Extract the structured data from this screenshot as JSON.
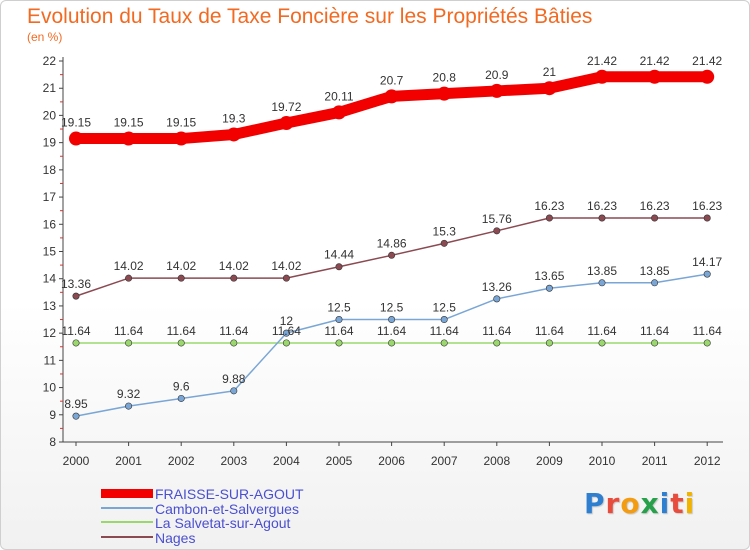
{
  "chart_data": {
    "type": "line",
    "title": "Evolution du Taux de Taxe Foncière sur les Propriétés Bâties",
    "subtitle": "(en %)",
    "xlabel": "",
    "ylabel": "",
    "categories": [
      "2000",
      "2001",
      "2002",
      "2003",
      "2004",
      "2005",
      "2006",
      "2007",
      "2008",
      "2009",
      "2010",
      "2011",
      "2012"
    ],
    "ylim": [
      8,
      22
    ],
    "yticks": [
      8,
      9,
      10,
      11,
      12,
      13,
      14,
      15,
      16,
      17,
      18,
      19,
      20,
      21,
      22
    ],
    "grid": false,
    "legend_position": "bottom-left",
    "series": [
      {
        "name": "FRAISSE-SUR-AGOUT",
        "color": "#f20000",
        "values": [
          19.15,
          19.15,
          19.15,
          19.3,
          19.72,
          20.11,
          20.7,
          20.8,
          20.9,
          21,
          21.42,
          21.42,
          21.42
        ],
        "labels": [
          "19.15",
          "19.15",
          "19.15",
          "19.3",
          "19.72",
          "20.11",
          "20.7",
          "20.8",
          "20.9",
          "21",
          "21.42",
          "21.42",
          "21.42"
        ]
      },
      {
        "name": "Cambon-et-Salvergues",
        "color": "#7aa6d6",
        "values": [
          8.95,
          9.32,
          9.6,
          9.88,
          12,
          12.5,
          12.5,
          12.5,
          13.26,
          13.65,
          13.85,
          13.85,
          14.17
        ],
        "labels": [
          "8.95",
          "9.32",
          "9.6",
          "9.88",
          "12",
          "12.5",
          "12.5",
          "12.5",
          "13.26",
          "13.65",
          "13.85",
          "13.85",
          "14.17"
        ]
      },
      {
        "name": "La Salvetat-sur-Agout",
        "color": "#9ad86e",
        "values": [
          11.64,
          11.64,
          11.64,
          11.64,
          11.64,
          11.64,
          11.64,
          11.64,
          11.64,
          11.64,
          11.64,
          11.64,
          11.64
        ],
        "labels": [
          "11.64",
          "11.64",
          "11.64",
          "11.64",
          "11.64",
          "11.64",
          "11.64",
          "11.64",
          "11.64",
          "11.64",
          "11.64",
          "11.64",
          "11.64"
        ]
      },
      {
        "name": "Nages",
        "color": "#8b4a52",
        "values": [
          13.36,
          14.02,
          14.02,
          14.02,
          14.02,
          14.44,
          14.86,
          15.3,
          15.76,
          16.23,
          16.23,
          16.23,
          16.23
        ],
        "labels": [
          "13.36",
          "14.02",
          "14.02",
          "14.02",
          "14.02",
          "14.44",
          "14.86",
          "15.3",
          "15.76",
          "16.23",
          "16.23",
          "16.23",
          "16.23"
        ]
      }
    ]
  },
  "logo": {
    "text": "Proxiti",
    "letters": [
      "P",
      "r",
      "o",
      "x",
      "i",
      "t",
      "i"
    ],
    "colors": [
      "#2f7fd1",
      "#e84c3d",
      "#f39c12",
      "#27a04a",
      "#2f7fd1",
      "#e84c3d",
      "#f0b400"
    ]
  }
}
